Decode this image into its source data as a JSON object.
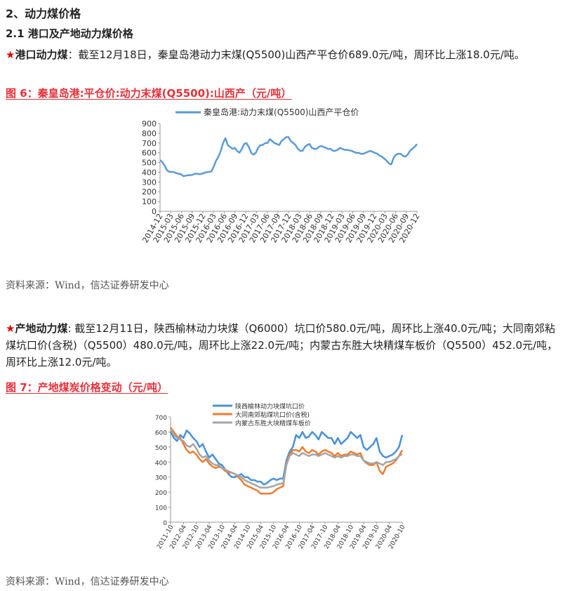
{
  "headings": {
    "h1": "2、动力煤价格",
    "h2": "2.1 港口及产地动力煤价格"
  },
  "port": {
    "star": "★",
    "lead": "港口动力煤",
    "text": "：截至12月18日，秦皇岛港动力末煤(Q5500)山西产平仓价689.0元/吨，周环比上涨18.0元/吨。",
    "figure_title": "图 6：秦皇岛港:平仓价:动力末煤(Q5500):山西产（元/吨）",
    "source": "资料来源：Wind，信达证券研发中心"
  },
  "origin": {
    "star": "★",
    "lead": "产地动力煤",
    "text": ": 截至12月11日，陕西榆林动力块煤（Q6000）坑口价580.0元/吨，周环比上涨40.0元/吨；大同南郊粘煤坑口价(含税)（Q5500）480.0元/吨，周环比上涨22.0元/吨；内蒙古东胜大块精煤车板价（Q5500）452.0元/吨，周环比上涨12.0元/吨。",
    "figure_title": "图 7：产地煤炭价格变动（元/吨）",
    "source": "资料来源：Wind，信达证券研发中心"
  },
  "chart_data": [
    {
      "type": "line",
      "title": "",
      "xlabel": "",
      "ylabel": "",
      "ylim": [
        0,
        900
      ],
      "yticks": [
        "0",
        "100",
        "200",
        "300",
        "400",
        "500",
        "600",
        "700",
        "800",
        "900"
      ],
      "xticks": [
        "2014-12",
        "2015-03",
        "2015-06",
        "2015-09",
        "2015-12",
        "2016-03",
        "2016-06",
        "2016-09",
        "2016-12",
        "2017-03",
        "2017-06",
        "2017-09",
        "2017-12",
        "2018-03",
        "2018-06",
        "2018-09",
        "2018-12",
        "2019-03",
        "2019-06",
        "2019-09",
        "2019-12",
        "2020-03",
        "2020-06",
        "2020-09",
        "2020-12"
      ],
      "legend_position": "top",
      "grid": false,
      "series": [
        {
          "name": "秦皇岛港:动力末煤(Q5500)山西产平仓价",
          "color": "#5b9bd5",
          "values": [
            525,
            505,
            465,
            420,
            405,
            405,
            400,
            390,
            385,
            380,
            360,
            365,
            370,
            370,
            375,
            385,
            385,
            380,
            385,
            395,
            400,
            405,
            410,
            460,
            520,
            560,
            620,
            700,
            750,
            680,
            660,
            640,
            650,
            620,
            600,
            640,
            690,
            700,
            660,
            600,
            580,
            600,
            650,
            680,
            680,
            700,
            700,
            740,
            720,
            700,
            690,
            680,
            720,
            740,
            760,
            760,
            720,
            700,
            680,
            640,
            620,
            620,
            660,
            680,
            690,
            650,
            640,
            640,
            660,
            670,
            660,
            650,
            640,
            640,
            620,
            620,
            630,
            650,
            640,
            630,
            630,
            625,
            620,
            610,
            600,
            600,
            590,
            590,
            600,
            610,
            620,
            610,
            600,
            590,
            570,
            560,
            540,
            520,
            490,
            480,
            550,
            580,
            590,
            590,
            570,
            560,
            580,
            620,
            640,
            660,
            689
          ]
        }
      ]
    },
    {
      "type": "line",
      "title": "",
      "xlabel": "",
      "ylabel": "",
      "ylim": [
        0,
        700
      ],
      "yticks": [
        "0",
        "100",
        "200",
        "300",
        "400",
        "500",
        "600",
        "700"
      ],
      "xticks": [
        "2011-10",
        "2012-04",
        "2012-10",
        "2013-04",
        "2013-10",
        "2014-04",
        "2014-10",
        "2015-04",
        "2015-10",
        "2016-04",
        "2016-10",
        "2017-04",
        "2017-10",
        "2018-04",
        "2018-10",
        "2019-04",
        "2019-10",
        "2020-04",
        "2020-10"
      ],
      "legend_position": "top",
      "grid": false,
      "series": [
        {
          "name": "陕西榆林动力块煤坑口价",
          "color": "#4a90d9",
          "values": [
            600,
            560,
            540,
            580,
            560,
            610,
            590,
            560,
            540,
            500,
            520,
            470,
            430,
            450,
            420,
            390,
            380,
            350,
            320,
            300,
            300,
            310,
            320,
            300,
            300,
            280,
            280,
            270,
            270,
            250,
            260,
            280,
            290,
            280,
            290,
            290,
            410,
            470,
            500,
            580,
            560,
            600,
            560,
            570,
            600,
            580,
            550,
            600,
            580,
            560,
            560,
            520,
            560,
            520,
            540,
            560,
            600,
            580,
            560,
            580,
            500,
            480,
            500,
            520,
            560,
            470,
            440,
            430,
            440,
            450,
            470,
            500,
            580
          ]
        },
        {
          "name": "大同南郊粘煤坑口价(含税)",
          "color": "#ed7d31",
          "values": [
            630,
            600,
            570,
            560,
            520,
            480,
            460,
            470,
            450,
            420,
            400,
            420,
            390,
            370,
            360,
            370,
            360,
            340,
            330,
            330,
            320,
            300,
            280,
            250,
            240,
            230,
            220,
            210,
            190,
            190,
            190,
            190,
            200,
            220,
            230,
            240,
            390,
            450,
            480,
            480,
            470,
            500,
            470,
            460,
            480,
            470,
            450,
            470,
            480,
            470,
            460,
            440,
            460,
            440,
            450,
            450,
            470,
            460,
            450,
            460,
            410,
            390,
            380,
            380,
            400,
            340,
            320,
            370,
            380,
            390,
            410,
            440,
            480
          ]
        },
        {
          "name": "内蒙古东胜大块精煤车板价",
          "color": "#a5a5a5",
          "values": [
            620,
            580,
            560,
            550,
            540,
            510,
            500,
            520,
            490,
            450,
            430,
            440,
            410,
            390,
            380,
            380,
            360,
            350,
            340,
            330,
            320,
            310,
            300,
            280,
            270,
            260,
            250,
            240,
            230,
            230,
            230,
            235,
            240,
            250,
            255,
            260,
            380,
            440,
            460,
            450,
            440,
            460,
            450,
            440,
            450,
            450,
            440,
            450,
            460,
            450,
            440,
            430,
            440,
            430,
            440,
            440,
            450,
            450,
            440,
            440,
            410,
            400,
            390,
            390,
            400,
            390,
            380,
            400,
            400,
            410,
            420,
            440,
            452
          ]
        }
      ]
    }
  ]
}
